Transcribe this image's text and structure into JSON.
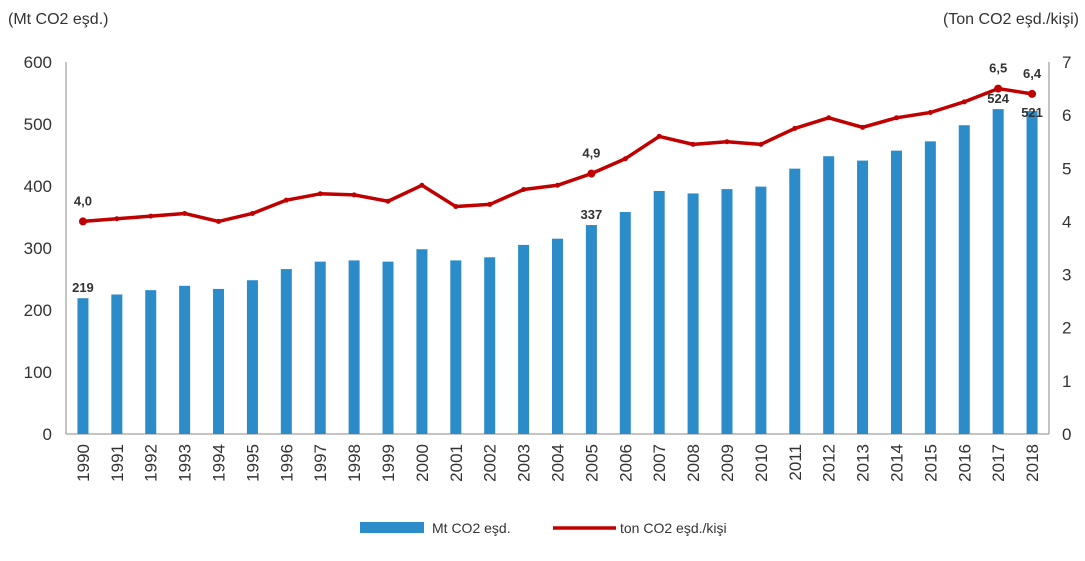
{
  "chart_data": {
    "type": "bar+line",
    "title": "",
    "ylabel_left": "(Mt CO2 eşd.)",
    "ylabel_right": "(Ton CO2 eşd./kişi)",
    "xlabel": "",
    "ylim_left": [
      0,
      600
    ],
    "ylim_right": [
      0,
      7
    ],
    "yticks_left": [
      "0",
      "100",
      "200",
      "300",
      "400",
      "500",
      "600"
    ],
    "yticks_right": [
      "0",
      "1",
      "2",
      "3",
      "4",
      "5",
      "6",
      "7"
    ],
    "grid": false,
    "legend_position": "bottom",
    "categories": [
      "1990",
      "1991",
      "1992",
      "1993",
      "1994",
      "1995",
      "1996",
      "1997",
      "1998",
      "1999",
      "2000",
      "2001",
      "2002",
      "2003",
      "2004",
      "2005",
      "2006",
      "2007",
      "2008",
      "2009",
      "2010",
      "2011",
      "2012",
      "2013",
      "2014",
      "2015",
      "2016",
      "2017",
      "2018"
    ],
    "series": [
      {
        "name": "Mt CO2 eşd.",
        "type": "bar",
        "axis": "left",
        "color": "#2c8bc9",
        "values": [
          219,
          225,
          232,
          239,
          234,
          248,
          266,
          278,
          280,
          278,
          298,
          280,
          285,
          305,
          315,
          337,
          358,
          392,
          388,
          395,
          399,
          428,
          448,
          441,
          457,
          472,
          498,
          524,
          521
        ]
      },
      {
        "name": "ton CO2 eşd./kişi",
        "type": "line",
        "axis": "right",
        "color": "#c00000",
        "values": [
          4.0,
          4.05,
          4.1,
          4.15,
          4.0,
          4.15,
          4.4,
          4.52,
          4.5,
          4.38,
          4.68,
          4.28,
          4.32,
          4.6,
          4.68,
          4.9,
          5.18,
          5.6,
          5.45,
          5.5,
          5.45,
          5.75,
          5.95,
          5.77,
          5.95,
          6.05,
          6.25,
          6.5,
          6.4
        ]
      }
    ],
    "bar_labels": [
      {
        "index": 0,
        "text": "219"
      },
      {
        "index": 15,
        "text": "337"
      },
      {
        "index": 27,
        "text": "524"
      },
      {
        "index": 28,
        "text": "521"
      }
    ],
    "line_labels": [
      {
        "index": 0,
        "text": "4,0"
      },
      {
        "index": 15,
        "text": "4,9"
      },
      {
        "index": 27,
        "text": "6,5"
      },
      {
        "index": 28,
        "text": "6,4"
      }
    ]
  }
}
